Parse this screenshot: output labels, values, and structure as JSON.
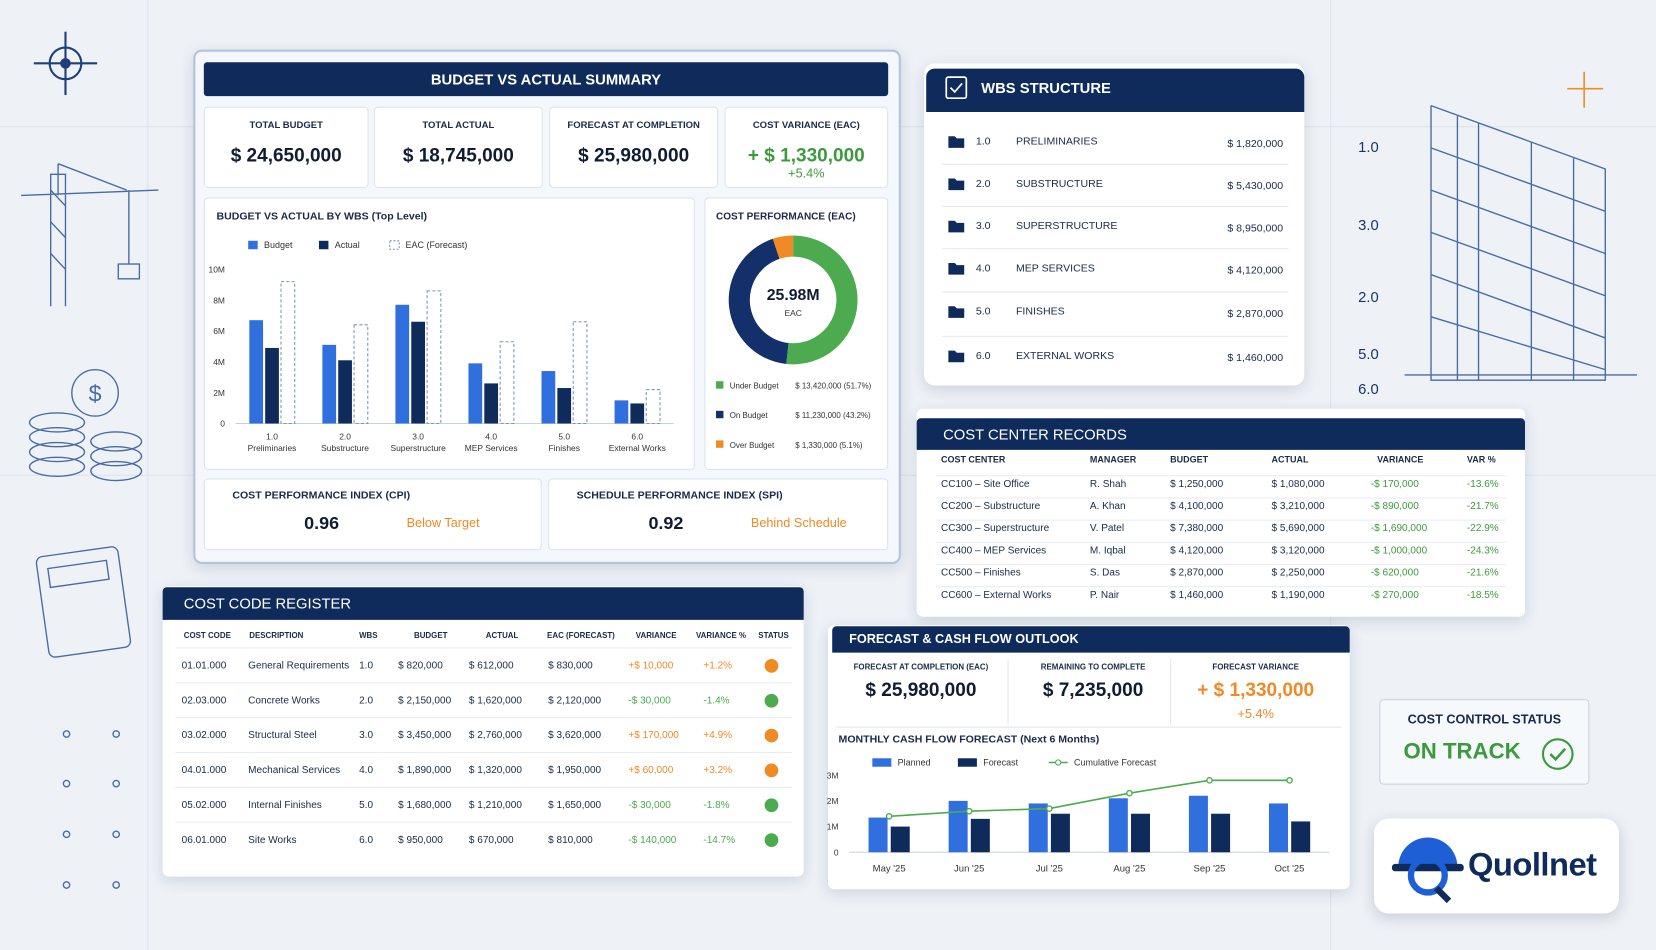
{
  "budget_summary": {
    "title": "BUDGET VS ACTUAL SUMMARY",
    "kpis": [
      {
        "label": "TOTAL BUDGET",
        "value": "$ 24,650,000"
      },
      {
        "label": "TOTAL ACTUAL",
        "value": "$ 18,745,000"
      },
      {
        "label": "FORECAST AT COMPLETION",
        "value": "$ 25,980,000"
      },
      {
        "label": "COST VARIANCE (EAC)",
        "value": "+ $ 1,330,000",
        "sub": "+5.4%"
      }
    ],
    "indices": [
      {
        "label": "COST PERFORMANCE INDEX (CPI)",
        "value": "0.96",
        "status": "Below Target"
      },
      {
        "label": "SCHEDULE PERFORMANCE INDEX (SPI)",
        "value": "0.92",
        "status": "Behind Schedule"
      }
    ]
  },
  "chart_data": [
    {
      "type": "bar",
      "title": "BUDGET VS ACTUAL BY WBS (Top Level)",
      "category_codes": [
        "1.0",
        "2.0",
        "3.0",
        "4.0",
        "5.0",
        "6.0"
      ],
      "categories": [
        "Preliminaries",
        "Substructure",
        "Superstructure",
        "MEP Services",
        "Finishes",
        "External Works"
      ],
      "series": [
        {
          "name": "Budget",
          "color": "#2f6fde",
          "values": [
            6.7,
            5.1,
            7.7,
            3.9,
            3.4,
            1.5
          ]
        },
        {
          "name": "Actual",
          "color": "#0f2b5b",
          "values": [
            4.9,
            4.1,
            6.6,
            2.6,
            2.3,
            1.3
          ]
        },
        {
          "name": "EAC (Forecast)",
          "color": "#7f95bf",
          "dashed": true,
          "values": [
            9.2,
            6.4,
            8.6,
            5.3,
            6.6,
            2.2
          ]
        }
      ],
      "ylim": [
        0,
        10
      ],
      "yticks": [
        0,
        {
          "value": 2,
          "label": "2M"
        },
        {
          "value": 4,
          "label": "4M"
        },
        {
          "value": 6,
          "label": "6M"
        },
        {
          "value": 8,
          "label": "8M"
        },
        {
          "value": 10,
          "label": "10M"
        }
      ]
    },
    {
      "type": "donut",
      "title": "COST PERFORMANCE (EAC)",
      "center_label": "25.98M",
      "center_sublabel": "EAC",
      "categories": [
        "Under Budget",
        "On Budget",
        "Over Budget"
      ],
      "values": [
        51.7,
        43.2,
        5.1
      ],
      "value_labels": [
        "$ 13,420,000 (51.7%)",
        "$ 11,230,000 (43.2%)",
        "$ 1,330,000 (5.1%)"
      ],
      "colors": [
        "#4caa4f",
        "#13306b",
        "#f08a24"
      ]
    },
    {
      "type": "bar",
      "title": "MONTHLY CASH FLOW FORECAST (Next 6 Months)",
      "categories": [
        "May '25",
        "Jun '25",
        "Jul '25",
        "Aug '25",
        "Sep '25",
        "Oct '25"
      ],
      "series": [
        {
          "name": "Planned",
          "color": "#2f6fde",
          "values": [
            1.35,
            2.0,
            1.9,
            2.1,
            2.2,
            1.9
          ]
        },
        {
          "name": "Forecast",
          "color": "#0f2b5b",
          "values": [
            1.0,
            1.3,
            1.5,
            1.5,
            1.5,
            1.2
          ]
        },
        {
          "name": "Cumulative Forecast",
          "color": "#4caa4f",
          "kind": "line",
          "values": [
            1.4,
            1.6,
            1.7,
            2.3,
            2.8,
            2.8
          ]
        }
      ],
      "ylim": [
        0,
        3
      ],
      "yticks": [
        0,
        {
          "value": 1,
          "label": "1M"
        },
        {
          "value": 2,
          "label": "2M"
        },
        {
          "value": 3,
          "label": "3M"
        }
      ]
    }
  ],
  "wbs_structure": {
    "title": "WBS STRUCTURE",
    "items": [
      {
        "code": "1.0",
        "name": "PRELIMINARIES",
        "amount": "$ 1,820,000"
      },
      {
        "code": "2.0",
        "name": "SUBSTRUCTURE",
        "amount": "$ 5,430,000"
      },
      {
        "code": "3.0",
        "name": "SUPERSTRUCTURE",
        "amount": "$ 8,950,000"
      },
      {
        "code": "4.0",
        "name": "MEP SERVICES",
        "amount": "$ 4,120,000"
      },
      {
        "code": "5.0",
        "name": "FINISHES",
        "amount": "$ 2,870,000"
      },
      {
        "code": "6.0",
        "name": "EXTERNAL WORKS",
        "amount": "$ 1,460,000"
      }
    ]
  },
  "sketch_labels": [
    "1.0",
    "3.0",
    "2.0",
    "5.0",
    "6.0"
  ],
  "cost_center_records": {
    "title": "COST CENTER RECORDS",
    "headers": [
      "COST CENTER",
      "MANAGER",
      "BUDGET",
      "ACTUAL",
      "VARIANCE",
      "VAR %"
    ],
    "rows": [
      [
        "CC100 – Site Office",
        "R. Shah",
        "$ 1,250,000",
        "$ 1,080,000",
        "-$ 170,000",
        "-13.6%"
      ],
      [
        "CC200 – Substructure",
        "A. Khan",
        "$ 4,100,000",
        "$ 3,210,000",
        "-$ 890,000",
        "-21.7%"
      ],
      [
        "CC300 – Superstructure",
        "V. Patel",
        "$ 7,380,000",
        "$ 5,690,000",
        "-$ 1,690,000",
        "-22.9%"
      ],
      [
        "CC400 – MEP Services",
        "M. Iqbal",
        "$ 4,120,000",
        "$ 3,120,000",
        "-$ 1,000,000",
        "-24.3%"
      ],
      [
        "CC500 – Finishes",
        "S. Das",
        "$ 2,870,000",
        "$ 2,250,000",
        "-$ 620,000",
        "-21.6%"
      ],
      [
        "CC600 – External Works",
        "P. Nair",
        "$ 1,460,000",
        "$ 1,190,000",
        "-$ 270,000",
        "-18.5%"
      ]
    ]
  },
  "cost_code_register": {
    "title": "COST CODE REGISTER",
    "headers": [
      "COST CODE",
      "DESCRIPTION",
      "WBS",
      "BUDGET",
      "ACTUAL",
      "EAC (FORECAST)",
      "VARIANCE",
      "VARIANCE %",
      "STATUS"
    ],
    "rows": [
      [
        "01.01.000",
        "General Requirements",
        "1.0",
        "$ 820,000",
        "$ 612,000",
        "$ 830,000",
        "+$ 10,000",
        "+1.2%"
      ],
      [
        "02.03.000",
        "Concrete Works",
        "2.0",
        "$ 2,150,000",
        "$ 1,620,000",
        "$ 2,120,000",
        "-$ 30,000",
        "-1.4%"
      ],
      [
        "03.02.000",
        "Structural Steel",
        "3.0",
        "$ 3,450,000",
        "$ 2,760,000",
        "$ 3,620,000",
        "+$ 170,000",
        "+4.9%"
      ],
      [
        "04.01.000",
        "Mechanical Services",
        "4.0",
        "$ 1,890,000",
        "$ 1,320,000",
        "$ 1,950,000",
        "+$ 60,000",
        "+3.2%"
      ],
      [
        "05.02.000",
        "Internal Finishes",
        "5.0",
        "$ 1,680,000",
        "$ 1,210,000",
        "$ 1,650,000",
        "-$ 30,000",
        "-1.8%"
      ],
      [
        "06.01.000",
        "Site Works",
        "6.0",
        "$ 950,000",
        "$ 670,000",
        "$ 810,000",
        "-$ 140,000",
        "-14.7%"
      ]
    ],
    "status_colors": [
      "#f08a24",
      "#4caa4f",
      "#f08a24",
      "#f08a24",
      "#4caa4f",
      "#4caa4f"
    ]
  },
  "forecast_outlook": {
    "title": "FORECAST & CASH FLOW OUTLOOK",
    "kpis": [
      {
        "label": "FORECAST AT COMPLETION (EAC)",
        "value": "$ 25,980,000"
      },
      {
        "label": "REMAINING TO COMPLETE",
        "value": "$ 7,235,000"
      },
      {
        "label": "FORECAST VARIANCE",
        "value": "+ $ 1,330,000",
        "sub": "+5.4%"
      }
    ]
  },
  "status": {
    "label": "COST CONTROL STATUS",
    "value": "ON TRACK"
  },
  "logo": {
    "text": "Quollnet"
  }
}
